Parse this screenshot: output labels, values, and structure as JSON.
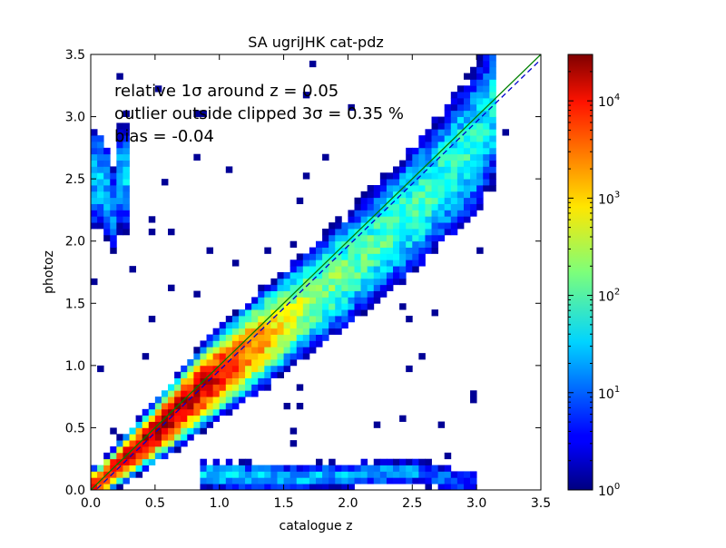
{
  "chart_data": {
    "type": "heatmap",
    "title": "SA ugriJHK cat-pdz",
    "xlabel": "catalogue z",
    "ylabel": "photoz",
    "xlim": [
      0.0,
      3.5
    ],
    "ylim": [
      0.0,
      3.5
    ],
    "x_ticks": [
      "0.0",
      "0.5",
      "1.0",
      "1.5",
      "2.0",
      "2.5",
      "3.0",
      "3.5"
    ],
    "y_ticks": [
      "0.0",
      "0.5",
      "1.0",
      "1.5",
      "2.0",
      "2.5",
      "3.0",
      "3.5"
    ],
    "grid": false,
    "colormap": "jet",
    "color_scale": "log",
    "colorbar_range": [
      1,
      30000
    ],
    "colorbar_ticks": [
      {
        "value": 1,
        "base": "10",
        "exp": "0"
      },
      {
        "value": 10,
        "base": "10",
        "exp": "1"
      },
      {
        "value": 100,
        "base": "10",
        "exp": "2"
      },
      {
        "value": 1000,
        "base": "10",
        "exp": "3"
      },
      {
        "value": 10000,
        "base": "10",
        "exp": "4"
      }
    ],
    "reference_lines": [
      {
        "style": "solid",
        "color": "#008000",
        "x": [
          0.0,
          3.5
        ],
        "y": [
          0.0,
          3.5
        ]
      },
      {
        "style": "dashed",
        "color": "#0000cc",
        "x": [
          0.0,
          3.5
        ],
        "y": [
          -0.04,
          3.46
        ]
      }
    ],
    "annotations": [
      "relative 1σ around z = 0.05",
      "outlier outside clipped 3σ = 0.35 %",
      "bias = -0.04"
    ],
    "density_structure": {
      "main_ridge": [
        [
          0.05,
          0.05,
          4.0
        ],
        [
          0.3,
          0.28,
          4.2
        ],
        [
          0.6,
          0.56,
          4.3
        ],
        [
          0.9,
          0.86,
          4.1
        ],
        [
          1.2,
          1.1,
          3.5
        ],
        [
          1.5,
          1.35,
          2.8
        ],
        [
          1.8,
          1.6,
          2.3
        ],
        [
          2.2,
          1.95,
          2.0
        ],
        [
          2.6,
          2.35,
          1.9
        ],
        [
          3.0,
          2.8,
          1.8
        ],
        [
          3.15,
          3.1,
          1.6
        ]
      ],
      "low_photoz_branch": [
        [
          1.0,
          0.12,
          1.5
        ],
        [
          1.5,
          0.1,
          1.4
        ],
        [
          2.0,
          0.12,
          1.3
        ],
        [
          2.5,
          0.15,
          1.2
        ],
        [
          3.0,
          0.05,
          0.8
        ]
      ],
      "high_photoz_branch": [
        [
          0.1,
          2.5,
          1.4
        ],
        [
          0.2,
          2.2,
          1.0
        ],
        [
          0.15,
          2.9,
          0.8
        ]
      ]
    }
  }
}
